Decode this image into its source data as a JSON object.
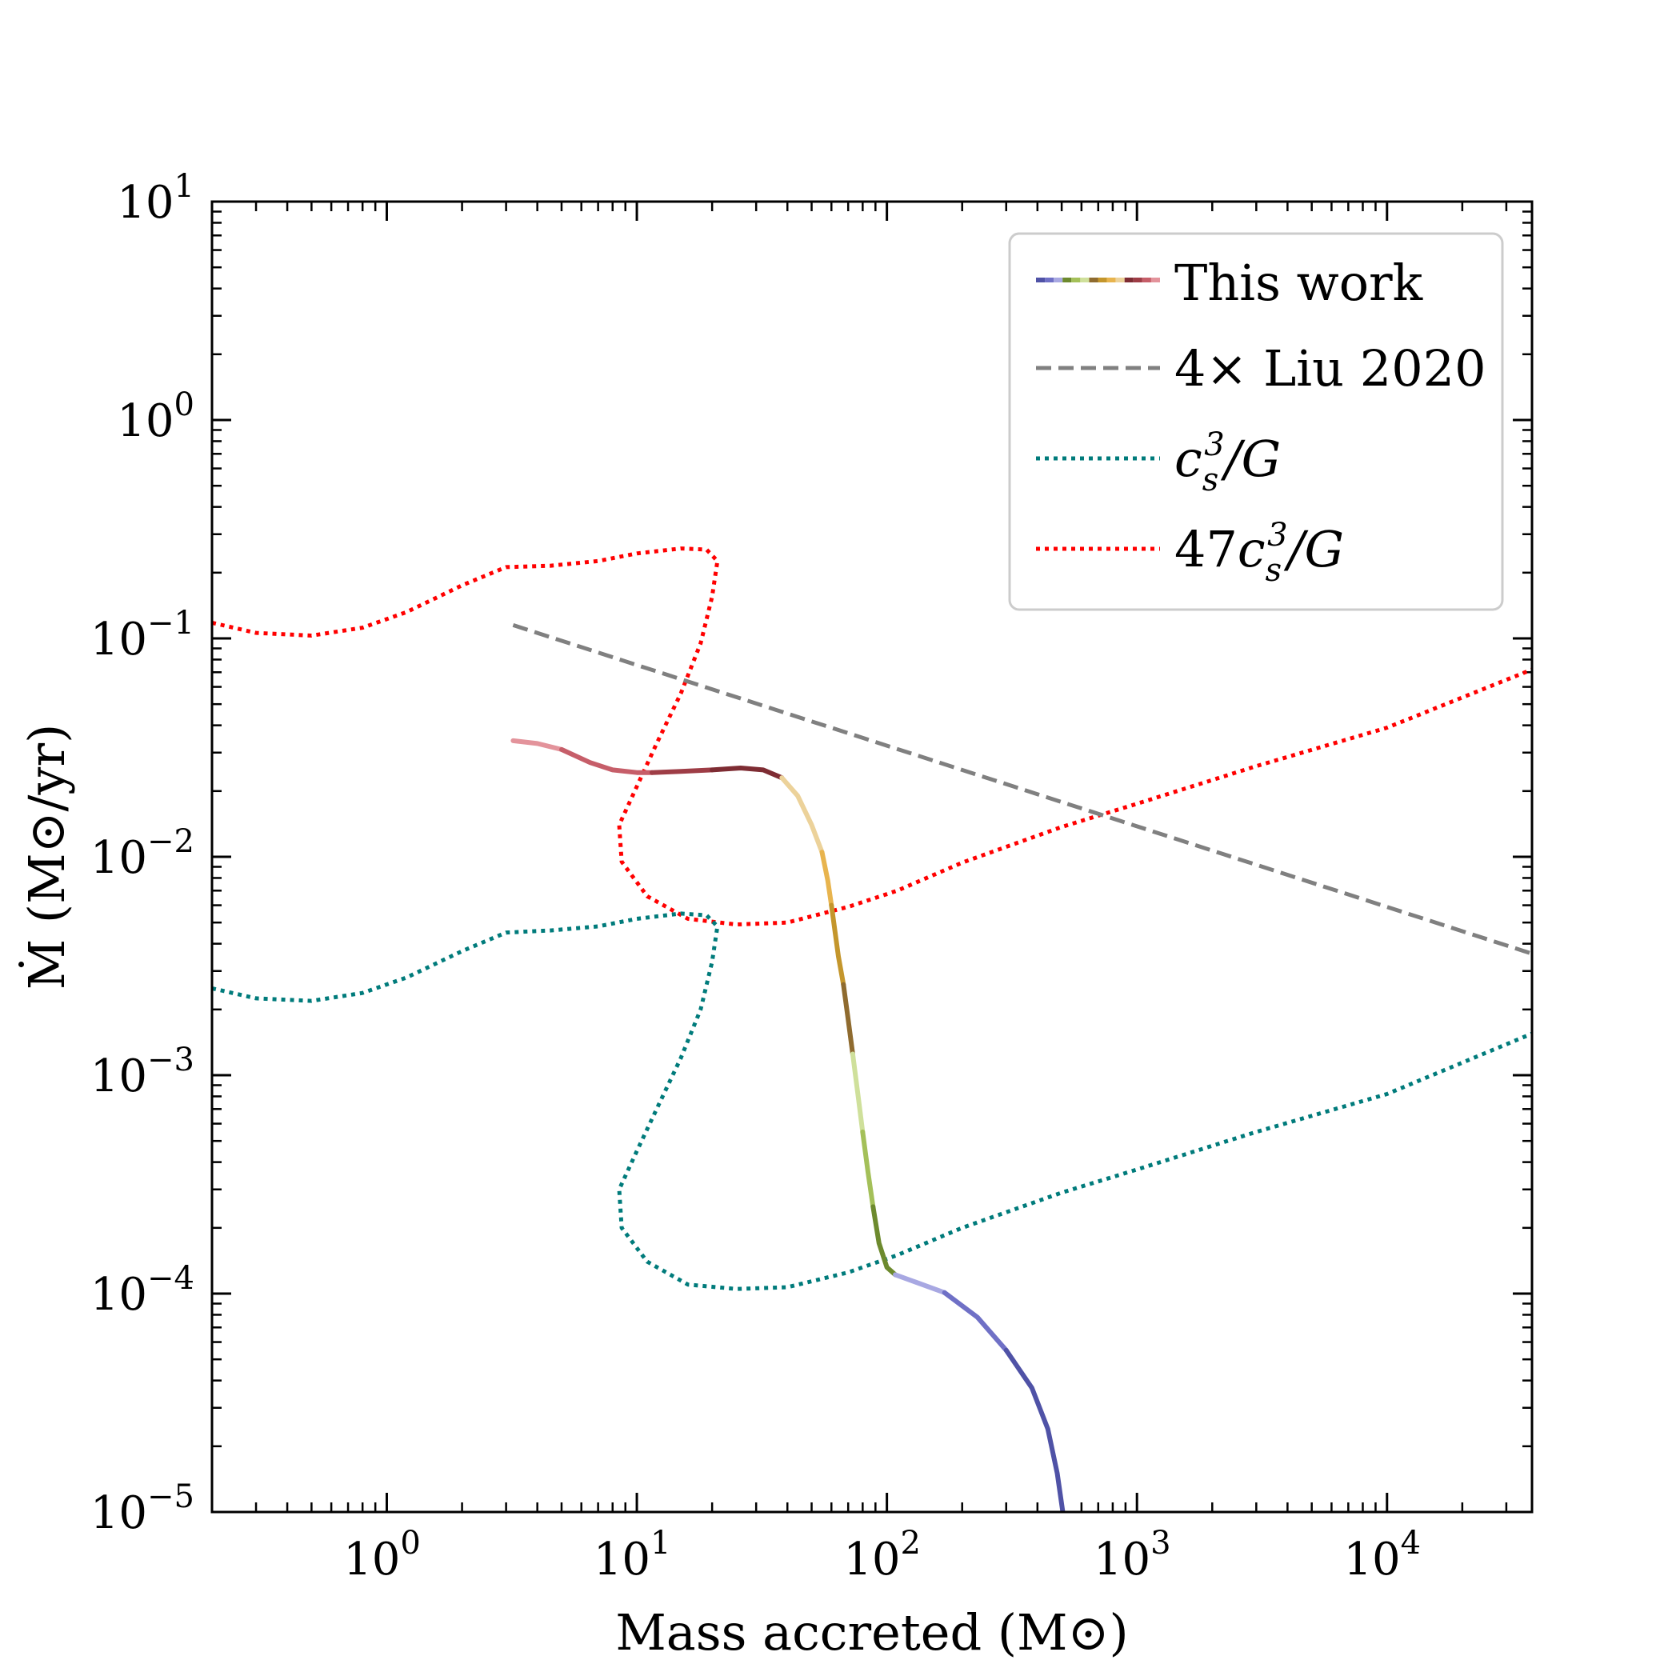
{
  "chart_data": {
    "type": "line",
    "title": "",
    "xlabel": "Mass accreted (M⊙)",
    "ylabel": "Ṁ (M⊙/yr)",
    "xscale": "log",
    "yscale": "log",
    "xlim": [
      0.2,
      38000
    ],
    "ylim": [
      1e-05,
      10
    ],
    "x_ticks": [
      {
        "value": 1,
        "base": "10",
        "exp": "0"
      },
      {
        "value": 10,
        "base": "10",
        "exp": "1"
      },
      {
        "value": 100,
        "base": "10",
        "exp": "2"
      },
      {
        "value": 1000,
        "base": "10",
        "exp": "3"
      },
      {
        "value": 10000,
        "base": "10",
        "exp": "4"
      }
    ],
    "y_ticks": [
      {
        "value": 1e-05,
        "base": "10",
        "exp": "−5"
      },
      {
        "value": 0.0001,
        "base": "10",
        "exp": "−4"
      },
      {
        "value": 0.001,
        "base": "10",
        "exp": "−3"
      },
      {
        "value": 0.01,
        "base": "10",
        "exp": "−2"
      },
      {
        "value": 0.1,
        "base": "10",
        "exp": "−1"
      },
      {
        "value": 1,
        "base": "10",
        "exp": "0"
      },
      {
        "value": 10,
        "base": "10",
        "exp": "1"
      }
    ],
    "legend": {
      "position": "top-right",
      "entries": [
        {
          "label": "This work",
          "style": "multicolor-solid"
        },
        {
          "label": "4× Liu 2020",
          "style": "dashed",
          "color": "#808080"
        },
        {
          "label": "c_s^3/G",
          "style": "dotted",
          "color": "#007b7b"
        },
        {
          "label": "47c_s^3/G",
          "style": "dotted",
          "color": "#ff0000"
        }
      ]
    },
    "series": [
      {
        "name": "This work",
        "style": "solid",
        "segments": [
          {
            "color": "#e3939b",
            "points": [
              [
                3.2,
                0.034
              ],
              [
                4.0,
                0.033
              ],
              [
                5.0,
                0.031
              ]
            ]
          },
          {
            "color": "#c65e69",
            "points": [
              [
                5.0,
                0.031
              ],
              [
                6.5,
                0.027
              ],
              [
                8.0,
                0.025
              ],
              [
                10.0,
                0.0243
              ],
              [
                11.5,
                0.0243
              ]
            ]
          },
          {
            "color": "#9e3d46",
            "points": [
              [
                11.5,
                0.0243
              ],
              [
                15.0,
                0.0246
              ],
              [
                20.0,
                0.025
              ]
            ]
          },
          {
            "color": "#7e2c33",
            "points": [
              [
                20.0,
                0.025
              ],
              [
                26.0,
                0.0255
              ],
              [
                32.0,
                0.025
              ],
              [
                38.0,
                0.023
              ]
            ]
          },
          {
            "color": "#ecd29a",
            "points": [
              [
                38.0,
                0.023
              ],
              [
                44.0,
                0.019
              ],
              [
                50.0,
                0.014
              ],
              [
                55.0,
                0.0105
              ]
            ]
          },
          {
            "color": "#e8b44e",
            "points": [
              [
                55.0,
                0.0105
              ],
              [
                58.0,
                0.0078
              ],
              [
                60.0,
                0.006
              ]
            ]
          },
          {
            "color": "#c4962c",
            "points": [
              [
                60.0,
                0.006
              ],
              [
                64.0,
                0.0035
              ],
              [
                67.0,
                0.0026
              ]
            ]
          },
          {
            "color": "#8f6b2f",
            "points": [
              [
                67.0,
                0.0026
              ],
              [
                70.0,
                0.0018
              ],
              [
                73.0,
                0.00125
              ]
            ]
          },
          {
            "color": "#cfe09b",
            "points": [
              [
                73.0,
                0.00125
              ],
              [
                77.0,
                0.00078
              ],
              [
                80.0,
                0.00055
              ]
            ]
          },
          {
            "color": "#a4c059",
            "points": [
              [
                80.0,
                0.00055
              ],
              [
                84.0,
                0.00036
              ],
              [
                88.0,
                0.00025
              ]
            ]
          },
          {
            "color": "#6d8a2e",
            "points": [
              [
                88.0,
                0.00025
              ],
              [
                93.0,
                0.00017
              ],
              [
                100.0,
                0.000132
              ],
              [
                108.0,
                0.000122
              ]
            ]
          },
          {
            "color": "#a8a8e2",
            "points": [
              [
                108.0,
                0.000122
              ],
              [
                130.0,
                0.000113
              ],
              [
                170.0,
                0.000101
              ]
            ]
          },
          {
            "color": "#6f70c6",
            "points": [
              [
                170.0,
                0.000101
              ],
              [
                230.0,
                7.8e-05
              ],
              [
                300.0,
                5.5e-05
              ]
            ]
          },
          {
            "color": "#4f52a6",
            "points": [
              [
                300.0,
                5.5e-05
              ],
              [
                380.0,
                3.7e-05
              ],
              [
                440.0,
                2.4e-05
              ],
              [
                480.0,
                1.5e-05
              ],
              [
                505.0,
                1e-05
              ]
            ]
          }
        ]
      },
      {
        "name": "4× Liu 2020",
        "style": "dashed",
        "color": "#808080",
        "points": [
          [
            3.2,
            0.115
          ],
          [
            38000,
            0.0036
          ]
        ]
      },
      {
        "name": "c_s^3/G",
        "style": "dotted",
        "color": "#007b7b",
        "points": [
          [
            0.2,
            0.0025
          ],
          [
            0.3,
            0.00225
          ],
          [
            0.5,
            0.00219
          ],
          [
            0.8,
            0.00238
          ],
          [
            1.2,
            0.0028
          ],
          [
            2.0,
            0.0037
          ],
          [
            3.0,
            0.0045
          ],
          [
            4.5,
            0.0046
          ],
          [
            7.0,
            0.0048
          ],
          [
            10.0,
            0.0052
          ],
          [
            15.0,
            0.0055
          ],
          [
            19.0,
            0.0054
          ],
          [
            21.0,
            0.0048
          ],
          [
            20.0,
            0.0033
          ],
          [
            18.0,
            0.002
          ],
          [
            15.0,
            0.0012
          ],
          [
            12.0,
            0.0007
          ],
          [
            10.0,
            0.00045
          ],
          [
            8.5,
            0.0003
          ],
          [
            8.7,
            0.0002
          ],
          [
            11.0,
            0.00014
          ],
          [
            16.0,
            0.00011
          ],
          [
            25.0,
            0.000105
          ],
          [
            40.0,
            0.000107
          ],
          [
            70.0,
            0.000125
          ],
          [
            110.0,
            0.00015
          ],
          [
            200.0,
            0.0002
          ],
          [
            500.0,
            0.00029
          ],
          [
            1000.0,
            0.00037
          ],
          [
            3000.0,
            0.00055
          ],
          [
            10000.0,
            0.00082
          ],
          [
            38000.0,
            0.00155
          ]
        ]
      },
      {
        "name": "47c_s^3/G",
        "style": "dotted",
        "color": "#ff0000",
        "points": [
          [
            0.2,
            0.118
          ],
          [
            0.3,
            0.106
          ],
          [
            0.5,
            0.103
          ],
          [
            0.8,
            0.112
          ],
          [
            1.2,
            0.132
          ],
          [
            2.0,
            0.175
          ],
          [
            3.0,
            0.212
          ],
          [
            4.5,
            0.215
          ],
          [
            7.0,
            0.226
          ],
          [
            10.0,
            0.245
          ],
          [
            15.0,
            0.258
          ],
          [
            19.0,
            0.255
          ],
          [
            21.0,
            0.226
          ],
          [
            20.0,
            0.155
          ],
          [
            18.0,
            0.095
          ],
          [
            15.0,
            0.056
          ],
          [
            12.0,
            0.033
          ],
          [
            10.0,
            0.021
          ],
          [
            8.5,
            0.014
          ],
          [
            8.7,
            0.0095
          ],
          [
            11.0,
            0.0066
          ],
          [
            16.0,
            0.0052
          ],
          [
            25.0,
            0.0049
          ],
          [
            40.0,
            0.005
          ],
          [
            70.0,
            0.0059
          ],
          [
            110.0,
            0.007
          ],
          [
            200.0,
            0.0094
          ],
          [
            500.0,
            0.0137
          ],
          [
            1000.0,
            0.0175
          ],
          [
            3000.0,
            0.026
          ],
          [
            10000.0,
            0.039
          ],
          [
            38000.0,
            0.072
          ]
        ]
      }
    ]
  }
}
